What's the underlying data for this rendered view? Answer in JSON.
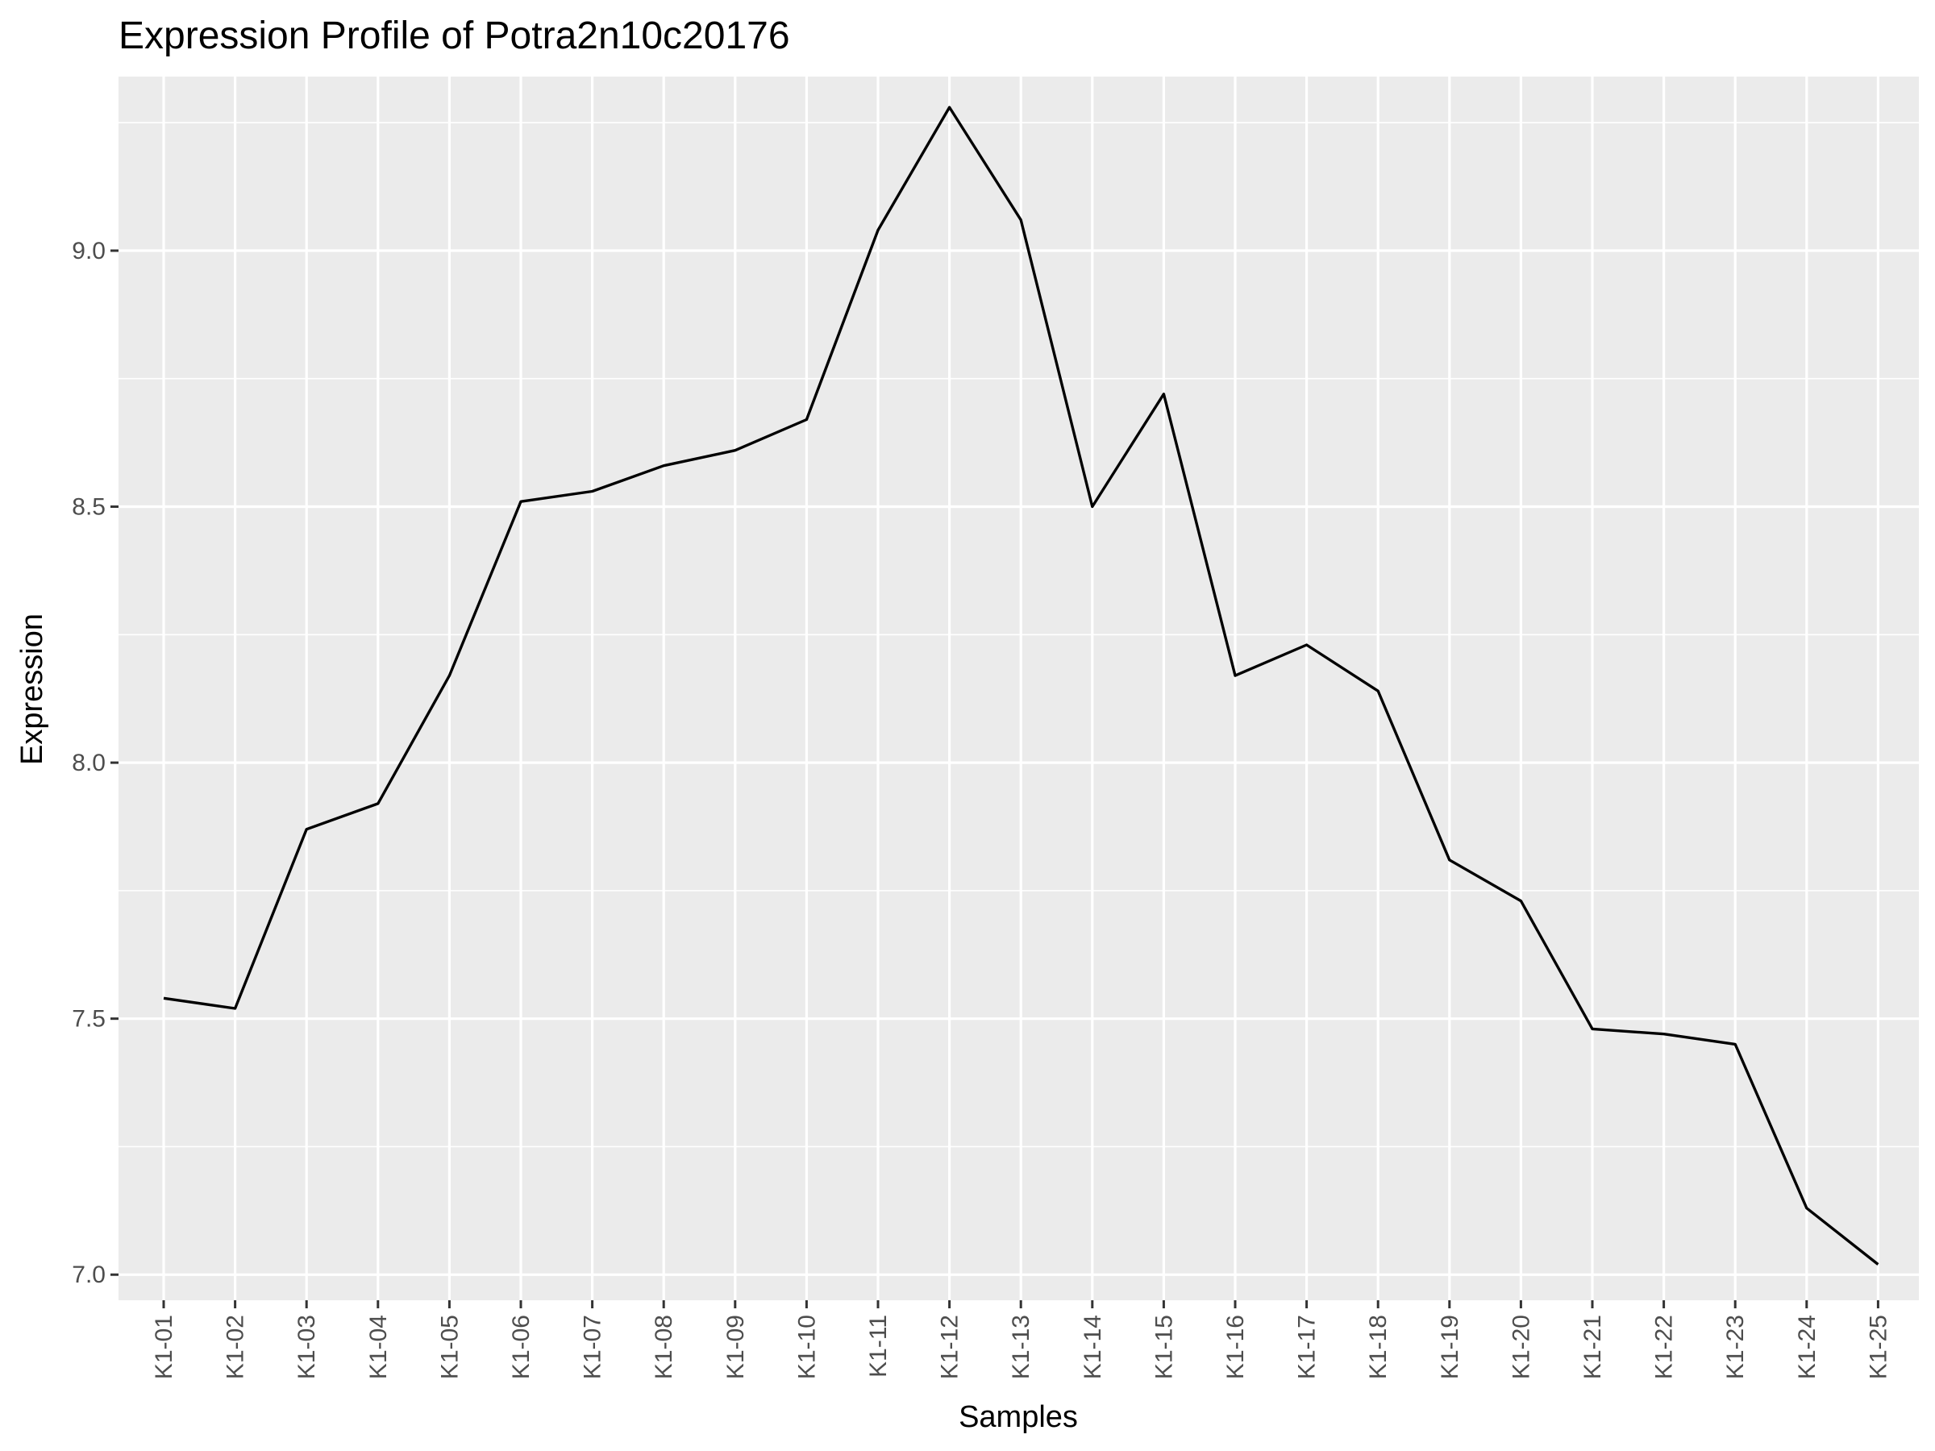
{
  "chart_data": {
    "type": "line",
    "title": "Expression Profile of Potra2n10c20176",
    "xlabel": "Samples",
    "ylabel": "Expression",
    "categories": [
      "K1-01",
      "K1-02",
      "K1-03",
      "K1-04",
      "K1-05",
      "K1-06",
      "K1-07",
      "K1-08",
      "K1-09",
      "K1-10",
      "K1-11",
      "K1-12",
      "K1-13",
      "K1-14",
      "K1-15",
      "K1-16",
      "K1-17",
      "K1-18",
      "K1-19",
      "K1-20",
      "K1-21",
      "K1-22",
      "K1-23",
      "K1-24",
      "K1-25"
    ],
    "series": [
      {
        "values": [
          7.54,
          7.52,
          7.87,
          7.92,
          8.17,
          8.51,
          8.53,
          8.58,
          8.61,
          8.67,
          9.04,
          9.28,
          9.06,
          8.5,
          8.72,
          8.17,
          8.23,
          8.14,
          7.81,
          7.73,
          7.48,
          7.47,
          7.45,
          7.13,
          7.02
        ]
      }
    ],
    "ylim": [
      6.95,
      9.34
    ],
    "yticks": [
      "7.0",
      "7.5",
      "8.0",
      "8.5",
      "9.0"
    ],
    "ytick_values": [
      7.0,
      7.5,
      8.0,
      8.5,
      9.0
    ],
    "grid": true,
    "legend": "none",
    "colors": {
      "panel_background": "#EBEBEB",
      "grid_line": "#FFFFFF",
      "series_line": "#000000",
      "tick_label": "#4D4D4D",
      "text": "#000000"
    }
  }
}
